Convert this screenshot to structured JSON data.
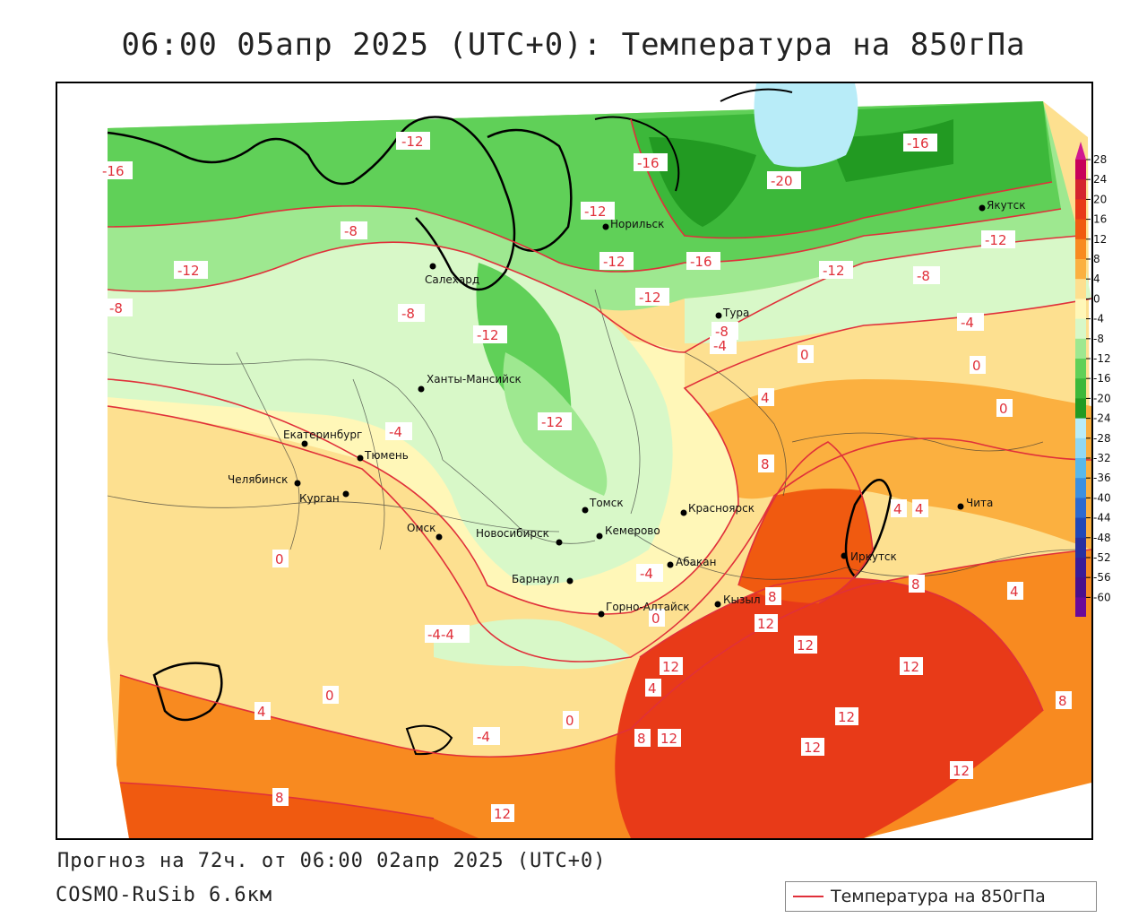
{
  "title": "06:00 05апр 2025 (UTC+0): Температура на 850гПа",
  "footer": {
    "forecast": "Прогноз на 72ч. от 06:00 02апр 2025 (UTC+0)",
    "model": "COSMO-RuSib 6.6км"
  },
  "legend": {
    "label": "Температура на 850гПа",
    "line_color": "#e0303a"
  },
  "colorbar": {
    "labels": [
      "28",
      "24",
      "20",
      "16",
      "12",
      "8",
      "4",
      "0",
      "-4",
      "-8",
      "-12",
      "-16",
      "-20",
      "-24",
      "-28",
      "-32",
      "-36",
      "-40",
      "-44",
      "-48",
      "-52",
      "-56",
      "-60"
    ],
    "colors": [
      "#c8005a",
      "#d4242e",
      "#e83a18",
      "#f05a10",
      "#f88a20",
      "#fbb040",
      "#fde090",
      "#fff7b8",
      "#d8f8c8",
      "#9ee890",
      "#60d058",
      "#3cb83a",
      "#229a22",
      "#b8ecf8",
      "#90d8f4",
      "#58b8ec",
      "#3c90e0",
      "#2c6ad0",
      "#2048b8",
      "#2830a0",
      "#3a1c98",
      "#4a108c",
      "#6a0a9a"
    ],
    "top_arrow_color": "#d01890",
    "bottom_arrow_color": "#8a1ab0"
  },
  "cities": [
    {
      "name": "Якутск"
    },
    {
      "name": "Норильск"
    },
    {
      "name": "Салехард"
    },
    {
      "name": "Тура"
    },
    {
      "name": "Ханты-Мансийск"
    },
    {
      "name": "Екатеринбург"
    },
    {
      "name": "Тюмень"
    },
    {
      "name": "Челябинск"
    },
    {
      "name": "Курган"
    },
    {
      "name": "Омск"
    },
    {
      "name": "Новосибирск"
    },
    {
      "name": "Томск"
    },
    {
      "name": "Кемерово"
    },
    {
      "name": "Красноярск"
    },
    {
      "name": "Барнаул"
    },
    {
      "name": "Абакан"
    },
    {
      "name": "Горно-Алтайск"
    },
    {
      "name": "Кызыл"
    },
    {
      "name": "Иркутск"
    },
    {
      "name": "Чита"
    }
  ],
  "contour_labels": [
    "-12",
    "-16",
    "-16",
    "-16",
    "-12",
    "-8",
    "-12",
    "-12",
    "-16",
    "-20",
    "-12",
    "-12",
    "-12",
    "-8",
    "-8",
    "-8",
    "-12",
    "-8",
    "-4",
    "-4",
    "-12",
    "-4",
    "0",
    "0",
    "4",
    "0",
    "8",
    "4",
    "4",
    "8",
    "4",
    "8",
    "12",
    "12",
    "12",
    "12",
    "12",
    "12",
    "8",
    "8",
    "12",
    "12",
    "12",
    "8",
    "4",
    "0",
    "-4",
    "0",
    "0",
    "4",
    "-4-4",
    "-4",
    "0"
  ]
}
